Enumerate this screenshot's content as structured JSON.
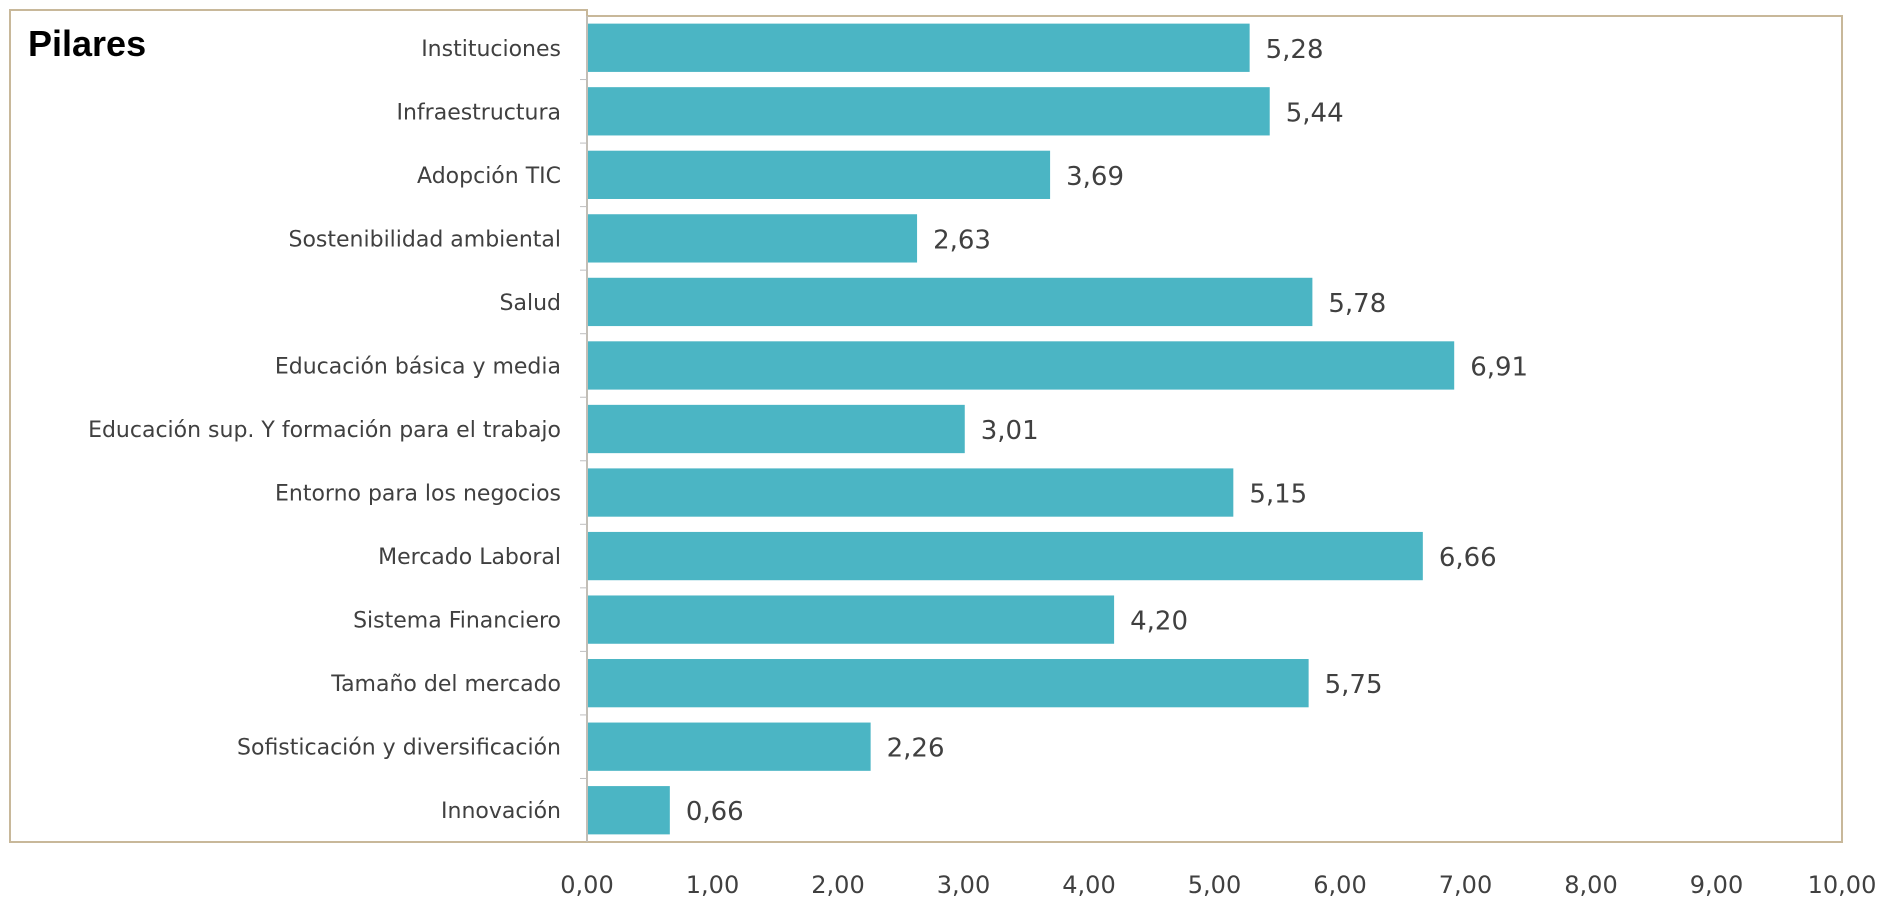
{
  "chart_data": {
    "type": "bar",
    "orientation": "horizontal",
    "title": "Pilares",
    "categories": [
      "Instituciones",
      "Infraestructura",
      "Adopción TIC",
      "Sostenibilidad ambiental",
      "Salud",
      "Educación básica y media",
      "Educación sup. Y formación para el trabajo",
      "Entorno para los negocios",
      "Mercado Laboral",
      "Sistema Financiero",
      "Tamaño  del mercado",
      "Sofisticación y diversificación",
      "Innovación"
    ],
    "values": [
      5.28,
      5.44,
      3.69,
      2.63,
      5.78,
      6.91,
      3.01,
      5.15,
      6.66,
      4.2,
      5.75,
      2.26,
      0.66
    ],
    "value_labels": [
      "5,28",
      "5,44",
      "3,69",
      "2,63",
      "5,78",
      "6,91",
      "3,01",
      "5,15",
      "6,66",
      "4,20",
      "5,75",
      "2,26",
      "0,66"
    ],
    "xlim": [
      0,
      10
    ],
    "x_ticks": [
      0,
      1,
      2,
      3,
      4,
      5,
      6,
      7,
      8,
      9,
      10
    ],
    "x_tick_labels": [
      "0,00",
      "1,00",
      "2,00",
      "3,00",
      "4,00",
      "5,00",
      "6,00",
      "7,00",
      "8,00",
      "9,00",
      "10,00"
    ],
    "xlabel": "",
    "ylabel": "",
    "grid": false,
    "legend": "none",
    "bar_color": "#4BB5C4",
    "border_color": "#C8B89A"
  }
}
